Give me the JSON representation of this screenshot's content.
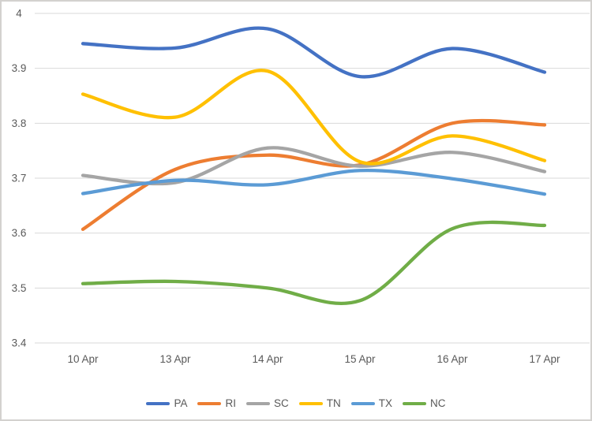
{
  "chart_data": {
    "type": "line",
    "smooth": true,
    "grid": true,
    "legend_position": "bottom",
    "categories": [
      "10 Apr",
      "13 Apr",
      "14 Apr",
      "15 Apr",
      "16 Apr",
      "17 Apr"
    ],
    "series": [
      {
        "name": "PA",
        "color": "#4472C4",
        "values": [
          3.945,
          3.937,
          3.972,
          3.885,
          3.936,
          3.893
        ]
      },
      {
        "name": "RI",
        "color": "#ED7D31",
        "values": [
          3.607,
          3.716,
          3.742,
          3.724,
          3.8,
          3.797
        ]
      },
      {
        "name": "SC",
        "color": "#A5A5A5",
        "values": [
          3.705,
          3.692,
          3.755,
          3.722,
          3.747,
          3.712
        ]
      },
      {
        "name": "TN",
        "color": "#FFC000",
        "values": [
          3.853,
          3.811,
          3.895,
          3.73,
          3.777,
          3.732
        ]
      },
      {
        "name": "TX",
        "color": "#5B9BD5",
        "values": [
          3.672,
          3.696,
          3.688,
          3.714,
          3.699,
          3.671
        ]
      },
      {
        "name": "NC",
        "color": "#70AD47",
        "values": [
          3.508,
          3.512,
          3.5,
          3.477,
          3.608,
          3.614
        ]
      }
    ],
    "ylim": [
      3.4,
      4.0
    ],
    "ytick_step": 0.1,
    "ytick_labels": [
      "4",
      "3.9",
      "3.8",
      "3.7",
      "3.6",
      "3.5",
      "3.4"
    ],
    "xlabel": "",
    "ylabel": "",
    "axis_text_color": "#595959",
    "gridline_color": "#D9D9D9",
    "border_color": "#D3D1CF",
    "background": "#FFFFFF"
  }
}
